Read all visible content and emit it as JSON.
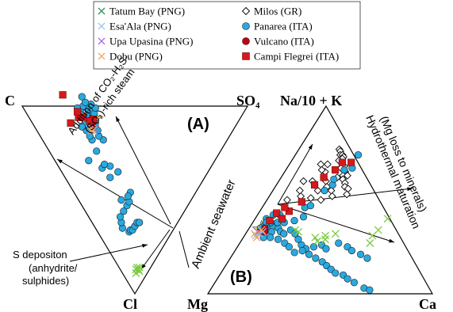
{
  "chart_data": [
    {
      "type": "scatter",
      "panel_label": "(A)",
      "vertices": {
        "top_left": "C",
        "top_right": "SO₄",
        "bottom": "Cl"
      },
      "annotations": {
        "steam": [
          "Addition of CO₂-H₂S-",
          "(SO₂)-rich steam"
        ],
        "s_deposition": [
          "S depositon",
          "(anhydrite/",
          "sulphides)"
        ]
      },
      "series": [
        {
          "name": "Tatum Bay (PNG)",
          "color": "#7ac943",
          "marker": "x",
          "points": [
            [
              0.09,
              0.05
            ],
            [
              0.08,
              0.05
            ],
            [
              0.08,
              0.04
            ],
            [
              0.07,
              0.06
            ],
            [
              0.08,
              0.06
            ],
            [
              0.06,
              0.05
            ]
          ]
        },
        {
          "name": "Esa'Ala (PNG)",
          "color": "#92c5f0",
          "marker": "x",
          "points": [
            [
              0.25,
              0.62
            ],
            [
              0.24,
              0.63
            ]
          ]
        },
        {
          "name": "Upa Upasina (PNG)",
          "color": "#a36bd6",
          "marker": "x",
          "points": [
            [
              0.26,
              0.62
            ]
          ]
        },
        {
          "name": "Dobu (PNG)",
          "color": "#f5a15a",
          "marker": "x",
          "points": [
            [
              0.24,
              0.63
            ],
            [
              0.25,
              0.63
            ],
            [
              0.25,
              0.62
            ]
          ]
        },
        {
          "name": "Panarea (ITA)",
          "color": "#29a9e0",
          "marker": "circle",
          "points": [
            [
              0.14,
              0.19
            ],
            [
              0.15,
              0.19
            ],
            [
              0.16,
              0.18
            ],
            [
              0.18,
              0.18
            ],
            [
              0.2,
              0.18
            ],
            [
              0.21,
              0.17
            ],
            [
              0.12,
              0.23
            ],
            [
              0.13,
              0.25
            ],
            [
              0.14,
              0.27
            ],
            [
              0.17,
              0.27
            ],
            [
              0.2,
              0.27
            ],
            [
              0.22,
              0.27
            ],
            [
              0.25,
              0.29
            ],
            [
              0.19,
              0.31
            ],
            [
              0.23,
              0.29
            ],
            [
              0.23,
              0.45
            ],
            [
              0.2,
              0.42
            ],
            [
              0.19,
              0.48
            ],
            [
              0.21,
              0.48
            ],
            [
              0.25,
              0.4
            ],
            [
              0.21,
              0.55
            ],
            [
              0.15,
              0.56
            ],
            [
              0.27,
              0.55
            ],
            [
              0.22,
              0.6
            ],
            [
              0.26,
              0.58
            ],
            [
              0.27,
              0.6
            ],
            [
              0.22,
              0.62
            ],
            [
              0.26,
              0.63
            ],
            [
              0.28,
              0.63
            ],
            [
              0.25,
              0.64
            ],
            [
              0.24,
              0.65
            ],
            [
              0.26,
              0.65
            ],
            [
              0.22,
              0.65
            ],
            [
              0.28,
              0.66
            ],
            [
              0.25,
              0.66
            ],
            [
              0.27,
              0.67
            ],
            [
              0.29,
              0.68
            ],
            [
              0.23,
              0.67
            ],
            [
              0.21,
              0.68
            ],
            [
              0.26,
              0.69
            ],
            [
              0.29,
              0.69
            ],
            [
              0.3,
              0.66
            ],
            [
              0.32,
              0.67
            ],
            [
              0.31,
              0.7
            ],
            [
              0.28,
              0.71
            ],
            [
              0.25,
              0.73
            ],
            [
              0.27,
              0.73
            ],
            [
              0.24,
              0.75
            ],
            [
              0.29,
              0.73
            ],
            [
              0.29,
              0.76
            ]
          ]
        },
        {
          "name": "Campi Flegrei (ITA)",
          "color": "#d7191c",
          "marker": "square",
          "points": [
            [
              0.26,
              0.64
            ],
            [
              0.27,
              0.65
            ],
            [
              0.28,
              0.65
            ],
            [
              0.26,
              0.66
            ],
            [
              0.22,
              0.72
            ],
            [
              0.24,
              0.7
            ],
            [
              0.23,
              0.74
            ],
            [
              0.17,
              0.74
            ],
            [
              0.21,
              0.85
            ]
          ]
        }
      ],
      "seawater": {
        "name": "Seawater",
        "color": "#f5e94a",
        "point": [
          0.28,
          0.65
        ]
      }
    },
    {
      "type": "scatter",
      "panel_label": "(B)",
      "vertices": {
        "top": "Na/10 + K",
        "bottom_left": "Mg",
        "bottom_right": "Ca"
      },
      "annotations": {
        "seawater": "Ambient seawater",
        "maturation": [
          "Hydrothermal maturation",
          "(Mg loss to minerals)"
        ]
      },
      "series": [
        {
          "name": "Tatum Bay (PNG)",
          "color": "#7ac943",
          "marker": "x",
          "points": [
            [
              0.32,
              0.3
            ],
            [
              0.34,
              0.28
            ],
            [
              0.36,
              0.31
            ],
            [
              0.37,
              0.29
            ],
            [
              0.4,
              0.32
            ],
            [
              0.58,
              0.27
            ],
            [
              0.58,
              0.34
            ],
            [
              0.59,
              0.4
            ],
            [
              0.57,
              0.31
            ],
            [
              0.21,
              0.34
            ],
            [
              0.23,
              0.33
            ]
          ]
        },
        {
          "name": "Esa'Ala (PNG)",
          "color": "#92c5f0",
          "marker": "x",
          "points": [
            [
              0.06,
              0.32
            ],
            [
              0.05,
              0.31
            ],
            [
              0.07,
              0.33
            ]
          ]
        },
        {
          "name": "Upa Upasina (PNG)",
          "color": "#a36bd6",
          "marker": "x",
          "points": [
            [
              0.05,
              0.33
            ]
          ]
        },
        {
          "name": "Dobu (PNG)",
          "color": "#f5a15a",
          "marker": "x",
          "points": [
            [
              0.06,
              0.34
            ],
            [
              0.04,
              0.32
            ],
            [
              0.06,
              0.3
            ]
          ]
        },
        {
          "name": "Milos (GR)",
          "color": "#000000",
          "marker": "diamond",
          "points": [
            [
              0.18,
              0.77
            ],
            [
              0.19,
              0.76
            ],
            [
              0.2,
              0.74
            ],
            [
              0.21,
              0.74
            ],
            [
              0.22,
              0.73
            ],
            [
              0.22,
              0.72
            ],
            [
              0.21,
              0.71
            ],
            [
              0.23,
              0.7
            ],
            [
              0.25,
              0.68
            ],
            [
              0.24,
              0.67
            ],
            [
              0.27,
              0.65
            ],
            [
              0.27,
              0.63
            ],
            [
              0.28,
              0.61
            ],
            [
              0.3,
              0.59
            ],
            [
              0.31,
              0.57
            ],
            [
              0.25,
              0.62
            ],
            [
              0.29,
              0.63
            ],
            [
              0.33,
              0.56
            ],
            [
              0.34,
              0.53
            ],
            [
              0.14,
              0.69
            ],
            [
              0.17,
              0.69
            ],
            [
              0.18,
              0.65
            ],
            [
              0.16,
              0.66
            ],
            [
              0.19,
              0.62
            ],
            [
              0.21,
              0.6
            ],
            [
              0.23,
              0.57
            ],
            [
              0.26,
              0.55
            ],
            [
              0.28,
              0.52
            ],
            [
              0.2,
              0.55
            ],
            [
              0.15,
              0.6
            ],
            [
              0.17,
              0.58
            ],
            [
              0.19,
              0.51
            ],
            [
              0.24,
              0.5
            ],
            [
              0.09,
              0.5
            ],
            [
              0.14,
              0.52
            ],
            [
              0.12,
              0.55
            ],
            [
              0.11,
              0.6
            ]
          ]
        },
        {
          "name": "Panarea (ITA)",
          "color": "#29a9e0",
          "marker": "circle",
          "points": [
            [
              0.07,
              0.34
            ],
            [
              0.08,
              0.35
            ],
            [
              0.09,
              0.35
            ],
            [
              0.1,
              0.36
            ],
            [
              0.11,
              0.33
            ],
            [
              0.06,
              0.36
            ],
            [
              0.05,
              0.35
            ],
            [
              0.13,
              0.35
            ],
            [
              0.15,
              0.33
            ],
            [
              0.17,
              0.32
            ],
            [
              0.19,
              0.34
            ],
            [
              0.22,
              0.32
            ],
            [
              0.25,
              0.29
            ],
            [
              0.28,
              0.26
            ],
            [
              0.31,
              0.24
            ],
            [
              0.34,
              0.21
            ],
            [
              0.38,
              0.19
            ],
            [
              0.42,
              0.17
            ],
            [
              0.45,
              0.15
            ],
            [
              0.48,
              0.13
            ],
            [
              0.51,
              0.11
            ],
            [
              0.55,
              0.1
            ],
            [
              0.58,
              0.08
            ],
            [
              0.62,
              0.06
            ],
            [
              0.68,
              0.03
            ],
            [
              0.71,
              0.02
            ],
            [
              0.16,
              0.29
            ],
            [
              0.2,
              0.27
            ],
            [
              0.23,
              0.25
            ],
            [
              0.27,
              0.22
            ],
            [
              0.3,
              0.23
            ],
            [
              0.34,
              0.25
            ],
            [
              0.37,
              0.26
            ],
            [
              0.4,
              0.24
            ],
            [
              0.44,
              0.27
            ],
            [
              0.49,
              0.25
            ],
            [
              0.52,
              0.23
            ],
            [
              0.57,
              0.21
            ],
            [
              0.61,
              0.19
            ],
            [
              0.11,
              0.38
            ],
            [
              0.12,
              0.4
            ],
            [
              0.1,
              0.42
            ],
            [
              0.14,
              0.38
            ],
            [
              0.08,
              0.38
            ],
            [
              0.09,
              0.3
            ],
            [
              0.12,
              0.3
            ],
            [
              0.05,
              0.4
            ],
            [
              0.07,
              0.42
            ],
            [
              0.06,
              0.38
            ],
            [
              0.18,
              0.39
            ],
            [
              0.21,
              0.41
            ],
            [
              0.19,
              0.46
            ],
            [
              0.21,
              0.47
            ],
            [
              0.23,
              0.55
            ],
            [
              0.25,
              0.58
            ],
            [
              0.26,
              0.66
            ],
            [
              0.24,
              0.61
            ],
            [
              0.29,
              0.67
            ],
            [
              0.28,
              0.74
            ]
          ]
        },
        {
          "name": "Vulcano (ITA)",
          "color": "#c0001a",
          "marker": "circle",
          "points": [
            [
              0.07,
              0.35
            ],
            [
              0.08,
              0.33
            ],
            [
              0.06,
              0.33
            ]
          ]
        },
        {
          "name": "Campi Flegrei (ITA)",
          "color": "#d7191c",
          "marker": "square",
          "points": [
            [
              0.13,
              0.44
            ],
            [
              0.16,
              0.49
            ],
            [
              0.17,
              0.58
            ],
            [
              0.19,
              0.62
            ],
            [
              0.22,
              0.66
            ],
            [
              0.23,
              0.7
            ],
            [
              0.27,
              0.7
            ],
            [
              0.1,
              0.46
            ],
            [
              0.08,
              0.43
            ],
            [
              0.07,
              0.39
            ],
            [
              0.12,
              0.4
            ]
          ]
        }
      ],
      "seawater": {
        "name": "Seawater",
        "color": "#f5e94a",
        "point": [
          0.06,
          0.34
        ]
      }
    }
  ],
  "legend": {
    "left_column": [
      {
        "label": "Tatum Bay (PNG)",
        "marker": "x",
        "color": "#2e8b57"
      },
      {
        "label": "Esa'Ala (PNG)",
        "marker": "x",
        "color": "#92c5f0"
      },
      {
        "label": "Upa Upasina (PNG)",
        "marker": "x",
        "color": "#a36bd6"
      },
      {
        "label": "Dobu (PNG)",
        "marker": "x",
        "color": "#f5a15a"
      }
    ],
    "right_column": [
      {
        "label": "Milos (GR)",
        "marker": "diamond",
        "color": "#000000"
      },
      {
        "label": "Panarea (ITA)",
        "marker": "circle",
        "color": "#29a9e0"
      },
      {
        "label": "Vulcano (ITA)",
        "marker": "circle",
        "color": "#c0001a"
      },
      {
        "label": "Campi Flegrei (ITA)",
        "marker": "square",
        "color": "#d7191c"
      }
    ]
  }
}
